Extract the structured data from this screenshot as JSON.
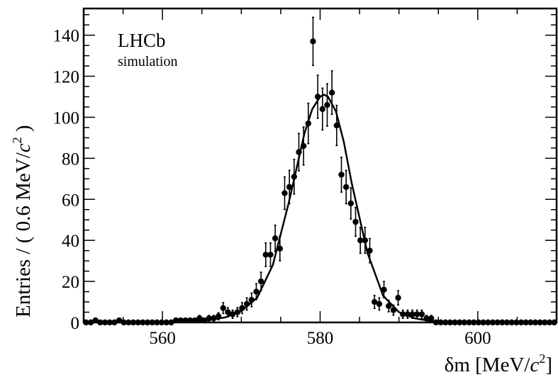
{
  "chart_data": {
    "type": "scatter",
    "title": "",
    "xlabel": "δm [MeV/c2]",
    "ylabel": "Entries / ( 0.6 MeV/c2 )",
    "xlim": [
      550,
      610
    ],
    "ylim": [
      0,
      153
    ],
    "xticks": [
      560,
      580,
      600
    ],
    "yticks": [
      0,
      20,
      40,
      60,
      80,
      100,
      120,
      140
    ],
    "grid": false,
    "legend": "none",
    "annotations": [
      "LHCb",
      "simulation"
    ],
    "series": [
      {
        "style": "points-with-error-bars",
        "x": [
          550.3,
          550.9,
          551.5,
          552.1,
          552.7,
          553.3,
          553.9,
          554.5,
          555.1,
          555.7,
          556.3,
          556.9,
          557.5,
          558.1,
          558.7,
          559.3,
          559.9,
          560.5,
          561.1,
          561.7,
          562.3,
          562.9,
          563.5,
          564.1,
          564.7,
          565.3,
          565.9,
          566.5,
          567.1,
          567.7,
          568.3,
          568.9,
          569.5,
          570.1,
          570.7,
          571.3,
          571.9,
          572.5,
          573.1,
          573.7,
          574.3,
          574.9,
          575.5,
          576.1,
          576.7,
          577.3,
          577.9,
          578.5,
          579.1,
          579.7,
          580.3,
          580.9,
          581.5,
          582.1,
          582.7,
          583.3,
          583.9,
          584.5,
          585.1,
          585.7,
          586.3,
          586.9,
          587.5,
          588.1,
          588.7,
          589.3,
          589.9,
          590.5,
          591.1,
          591.7,
          592.3,
          592.9,
          593.5,
          594.1,
          594.7,
          595.3,
          595.9,
          596.5,
          597.1,
          597.7,
          598.3,
          598.9,
          599.5,
          600.1,
          600.7,
          601.3,
          601.9,
          602.5,
          603.1,
          603.7,
          604.3,
          604.9,
          605.5,
          606.1,
          606.7,
          607.3,
          607.9,
          608.5,
          609.1,
          609.7
        ],
        "y": [
          0,
          0,
          1,
          0,
          0,
          0,
          0,
          1,
          0,
          0,
          0,
          0,
          0,
          0,
          0,
          0,
          0,
          0,
          0,
          1,
          1,
          1,
          1,
          1,
          2,
          1,
          2,
          2,
          3,
          7,
          5,
          4,
          5,
          7,
          9,
          11,
          15,
          20,
          33,
          33,
          41,
          36,
          63,
          66,
          71,
          83,
          86,
          97,
          137,
          110,
          104,
          106,
          112,
          96,
          72,
          66,
          58,
          49,
          40,
          40,
          35,
          10,
          9,
          16,
          8,
          6,
          12,
          4,
          4,
          4,
          4,
          4,
          2,
          2,
          0,
          0,
          0,
          0,
          0,
          0,
          0,
          0,
          0,
          0,
          0,
          0,
          0,
          0,
          0,
          0,
          0,
          0,
          0,
          0,
          0,
          0,
          0,
          0,
          0,
          0
        ]
      },
      {
        "style": "curve",
        "fit": "gaussian",
        "x": [
          550,
          552,
          554,
          556,
          558,
          560,
          562,
          564,
          566,
          568,
          570,
          572,
          574,
          576,
          577,
          578,
          579,
          580,
          580.5,
          581,
          582,
          583,
          584,
          586,
          588,
          590,
          592,
          594,
          596,
          598,
          600,
          605,
          610
        ],
        "y": [
          0,
          0,
          0,
          0,
          0,
          0,
          0.2,
          0.5,
          1.2,
          2.5,
          5.5,
          12,
          28,
          58,
          75,
          92,
          104,
          110,
          111,
          110,
          103,
          88,
          68,
          34,
          13,
          5,
          2,
          0.7,
          0.2,
          0.05,
          0,
          0,
          0
        ]
      }
    ]
  },
  "labels": {
    "ylabel_main": "Entries / ( 0.6 MeV/",
    "ylabel_var": "c",
    "ylabel_exp": "2",
    "ylabel_close": " )",
    "xlabel_main": "δm [MeV/",
    "xlabel_var": "c",
    "xlabel_exp": "2",
    "xlabel_close": "]",
    "brand": "LHCb",
    "brand_sub": "simulation"
  }
}
